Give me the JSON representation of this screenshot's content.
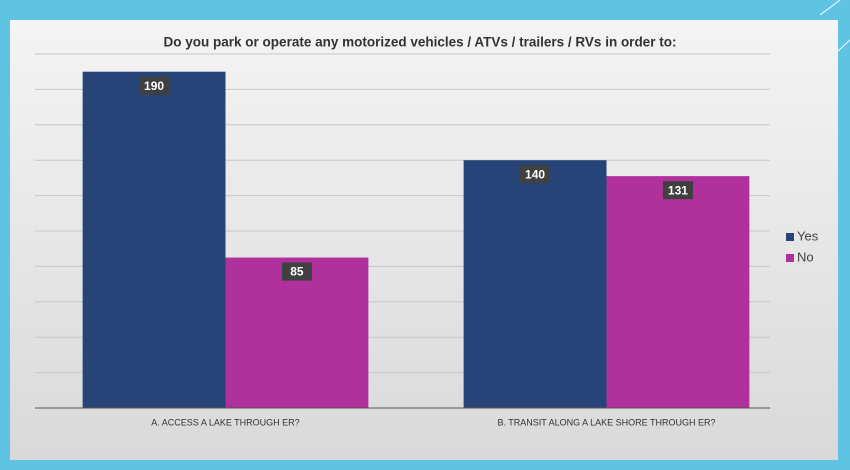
{
  "chart_data": {
    "type": "bar",
    "title": "Do you park or operate any motorized vehicles / ATVs / trailers / RVs in order to:",
    "categories": [
      "A. ACCESS A LAKE THROUGH ER?",
      "B. TRANSIT ALONG A LAKE SHORE THROUGH ER?"
    ],
    "series": [
      {
        "name": "Yes",
        "color": "#264478",
        "values": [
          190,
          140
        ]
      },
      {
        "name": "No",
        "color": "#b0309c",
        "values": [
          85,
          131
        ]
      }
    ],
    "ylim": [
      0,
      200
    ],
    "yticks": [
      0,
      20,
      40,
      60,
      80,
      100,
      120,
      140,
      160,
      180,
      200
    ],
    "grid": true,
    "legend": "right"
  }
}
